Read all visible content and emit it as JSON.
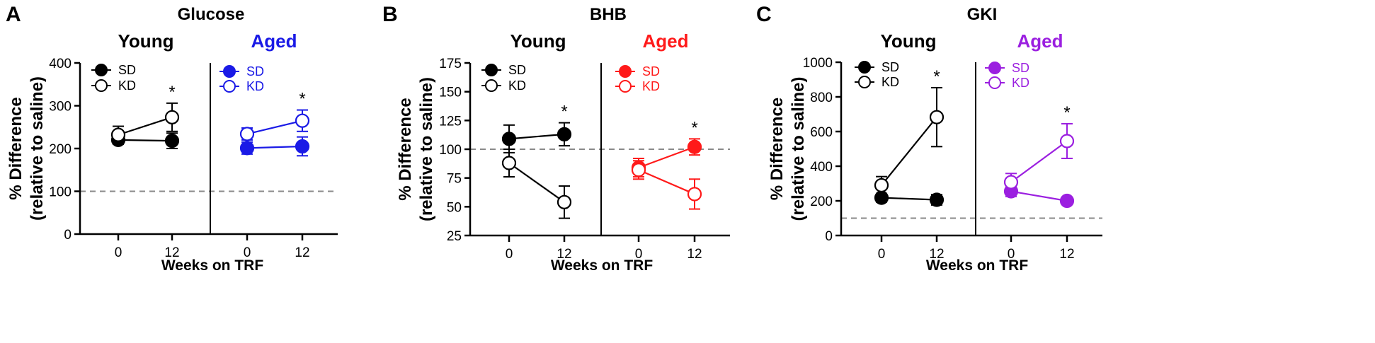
{
  "chart_data": [
    {
      "panel_letter": "A",
      "title": "Glucose",
      "type": "line",
      "ylabel_line1": "% Difference",
      "ylabel_line2": "(relative to saline)",
      "xlabel": "Weeks on TRF",
      "ylim": [
        0,
        400
      ],
      "yticks": [
        0,
        100,
        200,
        300,
        400
      ],
      "reference_line": 100,
      "groups": [
        {
          "title": "Young",
          "color": "#000000",
          "x_ticks": [
            "0",
            "12"
          ],
          "series": [
            {
              "name": "SD",
              "filled": true,
              "values": [
                220,
                218
              ],
              "errors": [
                10,
                18
              ]
            },
            {
              "name": "KD",
              "filled": false,
              "values": [
                232,
                273
              ],
              "errors": [
                20,
                33
              ]
            }
          ],
          "significance": [
            "",
            "*"
          ]
        },
        {
          "title": "Aged",
          "color": "#1a1ae6",
          "x_ticks": [
            "0",
            "12"
          ],
          "series": [
            {
              "name": "SD",
              "filled": true,
              "values": [
                201,
                205
              ],
              "errors": [
                14,
                22
              ]
            },
            {
              "name": "KD",
              "filled": false,
              "values": [
                234,
                265
              ],
              "errors": [
                14,
                25
              ]
            }
          ],
          "significance": [
            "",
            "*"
          ]
        }
      ]
    },
    {
      "panel_letter": "B",
      "title": "BHB",
      "type": "line",
      "ylabel_line1": "% Difference",
      "ylabel_line2": "(relative to saline)",
      "xlabel": "Weeks on TRF",
      "ylim": [
        25,
        175
      ],
      "yticks": [
        25,
        50,
        75,
        100,
        125,
        150,
        175
      ],
      "reference_line": 100,
      "groups": [
        {
          "title": "Young",
          "color": "#000000",
          "x_ticks": [
            "0",
            "12"
          ],
          "series": [
            {
              "name": "SD",
              "filled": true,
              "values": [
                109,
                113
              ],
              "errors": [
                12,
                10
              ]
            },
            {
              "name": "KD",
              "filled": false,
              "values": [
                88,
                54
              ],
              "errors": [
                12,
                14
              ]
            }
          ],
          "significance": [
            "",
            "*"
          ]
        },
        {
          "title": "Aged",
          "color": "#ff1a1a",
          "x_ticks": [
            "0",
            "12"
          ],
          "series": [
            {
              "name": "SD",
              "filled": true,
              "values": [
                84,
                102
              ],
              "errors": [
                8,
                7
              ]
            },
            {
              "name": "KD",
              "filled": false,
              "values": [
                82,
                61
              ],
              "errors": [
                8,
                13
              ]
            }
          ],
          "significance": [
            "",
            "*"
          ]
        }
      ]
    },
    {
      "panel_letter": "C",
      "title": "GKI",
      "type": "line",
      "ylabel_line1": "% Difference",
      "ylabel_line2": "(relative to saline)",
      "xlabel": "Weeks on TRF",
      "ylim": [
        0,
        1000
      ],
      "yticks": [
        0,
        200,
        400,
        600,
        800,
        1000
      ],
      "reference_line": 100,
      "groups": [
        {
          "title": "Young",
          "color": "#000000",
          "x_ticks": [
            "0",
            "12"
          ],
          "series": [
            {
              "name": "SD",
              "filled": true,
              "values": [
                218,
                206
              ],
              "errors": [
                25,
                30
              ]
            },
            {
              "name": "KD",
              "filled": false,
              "values": [
                290,
                683
              ],
              "errors": [
                50,
                170
              ]
            }
          ],
          "significance": [
            "",
            "*"
          ]
        },
        {
          "title": "Aged",
          "color": "#9b1fe0",
          "x_ticks": [
            "0",
            "12"
          ],
          "series": [
            {
              "name": "SD",
              "filled": true,
              "values": [
                255,
                200
              ],
              "errors": [
                30,
                10
              ]
            },
            {
              "name": "KD",
              "filled": false,
              "values": [
                308,
                545
              ],
              "errors": [
                50,
                100
              ]
            }
          ],
          "significance": [
            "",
            "*"
          ]
        }
      ]
    }
  ]
}
